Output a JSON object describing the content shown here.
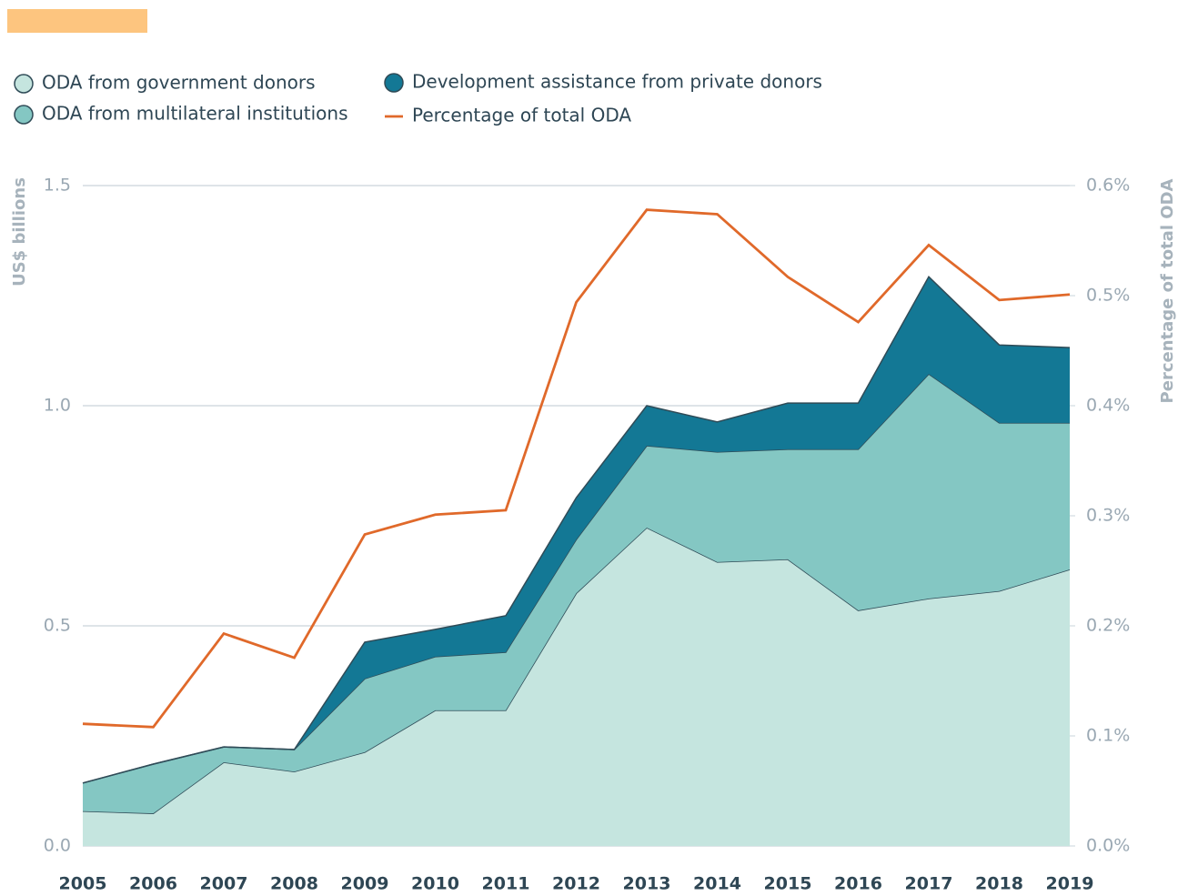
{
  "chart_data": {
    "type": "stacked_area_line",
    "x": [
      2005,
      2006,
      2007,
      2008,
      2009,
      2010,
      2011,
      2012,
      2013,
      2014,
      2015,
      2016,
      2017,
      2018,
      2019
    ],
    "series": [
      {
        "name": "ODA from government donors",
        "color": "#c5e5df",
        "values": [
          0.079,
          0.074,
          0.19,
          0.169,
          0.213,
          0.308,
          0.308,
          0.574,
          0.723,
          0.645,
          0.651,
          0.535,
          0.562,
          0.579,
          0.628
        ]
      },
      {
        "name": "ODA from multilateral institutions",
        "color": "#84c7c3",
        "values": [
          0.064,
          0.112,
          0.035,
          0.05,
          0.167,
          0.122,
          0.132,
          0.122,
          0.186,
          0.25,
          0.25,
          0.366,
          0.51,
          0.382,
          0.333
        ]
      },
      {
        "name": "Development assistance from private donors",
        "color": "#137895",
        "values": [
          0,
          0,
          0,
          0,
          0.083,
          0.062,
          0.083,
          0.095,
          0.091,
          0.068,
          0.105,
          0.105,
          0.221,
          0.177,
          0.171
        ]
      },
      {
        "name": "Percentage of total ODA",
        "color": "#e0692a",
        "axis": "y2",
        "values": [
          0.111,
          0.108,
          0.193,
          0.171,
          0.283,
          0.301,
          0.305,
          0.494,
          0.578,
          0.574,
          0.517,
          0.476,
          0.546,
          0.496,
          0.501
        ]
      }
    ],
    "ylabel": "US$ billions",
    "y2label": "Percentage of total ODA",
    "ylim": [
      0,
      1.5
    ],
    "yticks": [
      {
        "value": 0,
        "label": "0.0"
      },
      0.5,
      {
        "value": 1,
        "label": "1.0"
      },
      1.5
    ],
    "y2lim": [
      0,
      0.6
    ],
    "y2ticks": [
      {
        "value": 0,
        "label": "0.0%"
      },
      {
        "value": 0.1,
        "label": "0.1%"
      },
      {
        "value": 0.2,
        "label": "0.2%"
      },
      {
        "value": 0.3,
        "label": "0.3%"
      },
      {
        "value": 0.4,
        "label": "0.4%"
      },
      {
        "value": 0.5,
        "label": "0.5%"
      },
      {
        "value": 0.6,
        "label": "0.6%"
      }
    ],
    "grid": true
  }
}
